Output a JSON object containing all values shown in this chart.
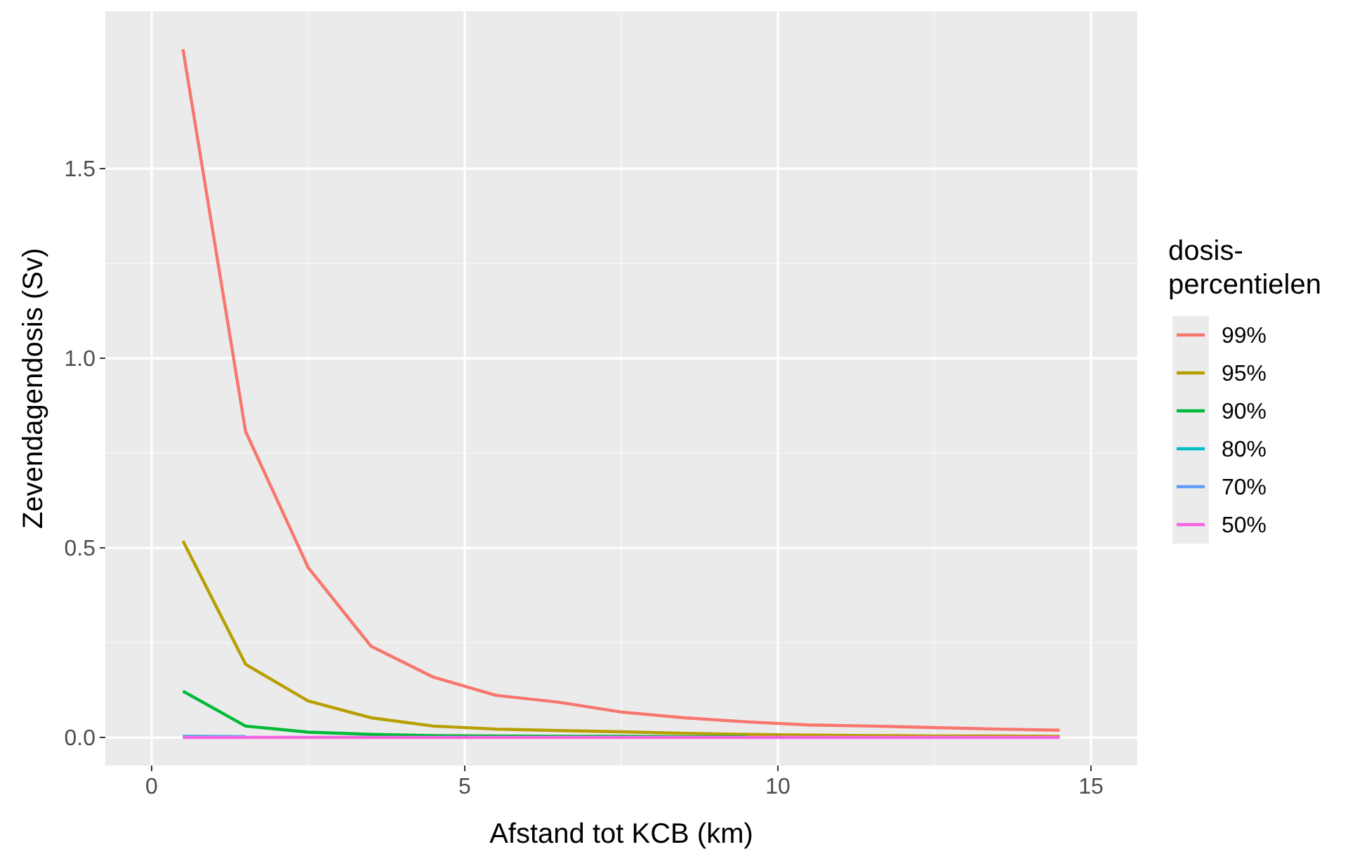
{
  "chart_data": {
    "type": "line",
    "xlabel": "Afstand tot KCB (km)",
    "ylabel": "Zevendagendosis (Sv)",
    "legend_title": "dosis-\npercentielen",
    "legend": "right",
    "grid": true,
    "x": [
      0.5,
      1.5,
      2.5,
      3.5,
      4.5,
      5.5,
      6.5,
      7.5,
      8.5,
      9.5,
      10.5,
      11.5,
      12.5,
      13.5,
      14.5
    ],
    "xlim": [
      -0.74,
      15.74
    ],
    "xticks": [
      0,
      5,
      10,
      15
    ],
    "ylim": [
      -0.074,
      1.915
    ],
    "yticks": [
      {
        "value": 0,
        "label": "0.0"
      },
      {
        "value": 0.5,
        "label": "0.5"
      },
      {
        "value": 1,
        "label": "1.0"
      },
      {
        "value": 1.5,
        "label": "1.5"
      }
    ],
    "series": [
      {
        "name": "99%",
        "color": "#f8766d",
        "values": [
          1.815,
          0.807,
          0.448,
          0.241,
          0.159,
          0.111,
          0.093,
          0.067,
          0.052,
          0.041,
          0.033,
          0.03,
          0.026,
          0.022,
          0.019
        ]
      },
      {
        "name": "95%",
        "color": "#b79f00",
        "values": [
          0.518,
          0.193,
          0.096,
          0.052,
          0.03,
          0.022,
          0.018,
          0.015,
          0.011,
          0.008,
          0.006,
          0.005,
          0.004,
          0.004,
          0.003
        ]
      },
      {
        "name": "90%",
        "color": "#00ba38",
        "values": [
          0.122,
          0.03,
          0.014,
          0.008,
          0.005,
          0.004,
          0.003,
          0.003,
          0.002,
          0.002,
          null,
          null,
          null,
          null,
          null
        ]
      },
      {
        "name": "80%",
        "color": "#00bfc4",
        "values": [
          0.003,
          0.002,
          null,
          null,
          null,
          null,
          null,
          null,
          null,
          null,
          null,
          null,
          null,
          null,
          null
        ]
      },
      {
        "name": "70%",
        "color": "#619cff",
        "values": [
          0.001,
          0.001,
          null,
          null,
          null,
          null,
          null,
          null,
          null,
          null,
          null,
          null,
          null,
          null,
          null
        ]
      },
      {
        "name": "50%",
        "color": "#f564e3",
        "values": [
          0,
          0,
          0,
          0,
          0,
          0,
          0,
          0,
          0,
          0,
          0,
          0,
          0,
          0,
          0
        ]
      }
    ]
  }
}
